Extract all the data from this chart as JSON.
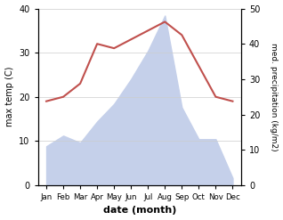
{
  "months": [
    "Jan",
    "Feb",
    "Mar",
    "Apr",
    "May",
    "Jun",
    "Jul",
    "Aug",
    "Sep",
    "Oct",
    "Nov",
    "Dec"
  ],
  "x": [
    0,
    1,
    2,
    3,
    4,
    5,
    6,
    7,
    8,
    9,
    10,
    11
  ],
  "max_temp": [
    19,
    20,
    23,
    32,
    31,
    33,
    35,
    37,
    34,
    27,
    20,
    19
  ],
  "precipitation": [
    11,
    14,
    12,
    18,
    23,
    30,
    38,
    48,
    22,
    13,
    13,
    2
  ],
  "temp_color": "#c0504d",
  "precip_fill_color": "#c5d0ea",
  "left_ylim": [
    0,
    40
  ],
  "right_ylim": [
    0,
    50
  ],
  "left_yticks": [
    0,
    10,
    20,
    30,
    40
  ],
  "right_yticks": [
    0,
    10,
    20,
    30,
    40,
    50
  ],
  "xlabel": "date (month)",
  "ylabel_left": "max temp (C)",
  "ylabel_right": "med. precipitation (kg/m2)",
  "bg_color": "#ffffff",
  "grid_color": "#cccccc",
  "temp_linewidth": 1.5,
  "title": ""
}
